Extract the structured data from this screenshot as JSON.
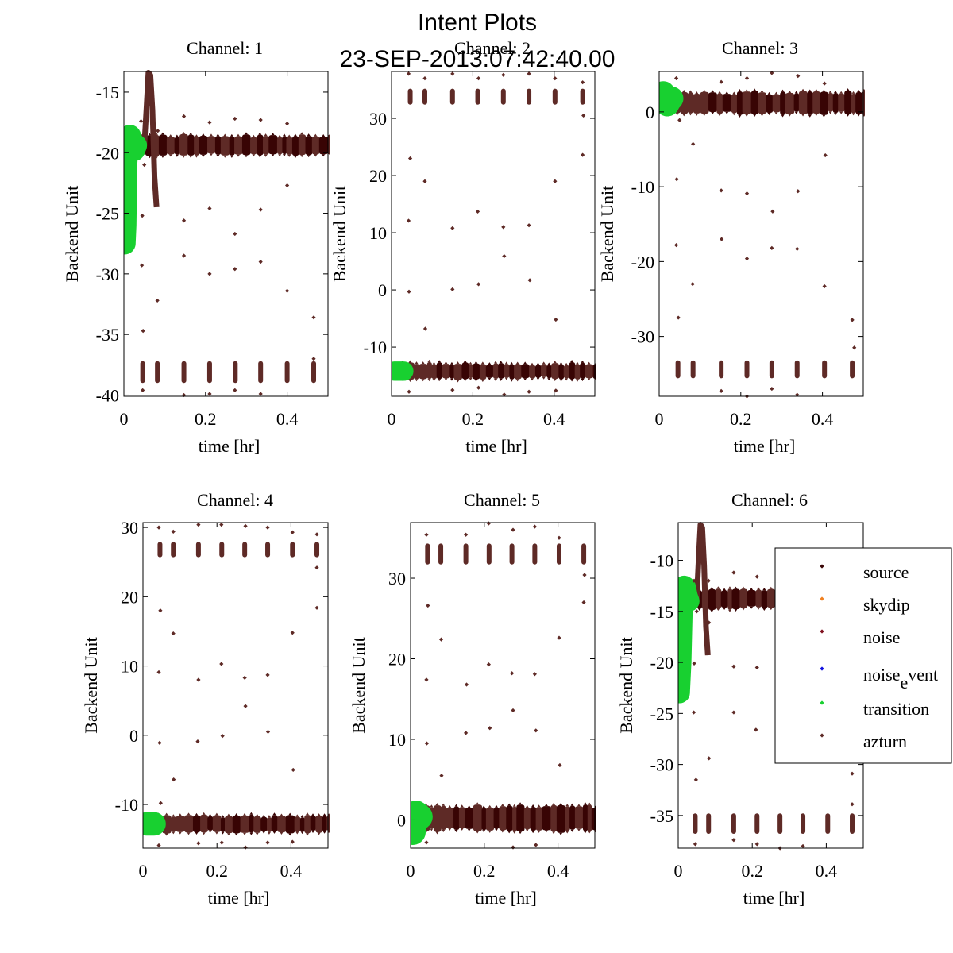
{
  "figure": {
    "title_line1": "Intent Plots",
    "title_line2": "23-SEP-2013:07:42:40.00"
  },
  "colors": {
    "source": "#3a0606",
    "skydip": "#f08020",
    "noise": "#80101e",
    "noise_event": "#1010e0",
    "transition": "#18d030",
    "azturn": "#5e2a26",
    "band_dark": "#380404",
    "band_light": "#5e2a26"
  },
  "legend": {
    "location": "upper-right of Channel 6 panel",
    "entries": [
      {
        "key": "source",
        "label": "source",
        "sub": ""
      },
      {
        "key": "skydip",
        "label": "skydip",
        "sub": ""
      },
      {
        "key": "noise",
        "label": "noise",
        "sub": ""
      },
      {
        "key": "noise_event",
        "label": "noise",
        "sub": "e",
        "tail": "vent"
      },
      {
        "key": "transition",
        "label": "transition",
        "sub": ""
      },
      {
        "key": "azturn",
        "label": "azturn",
        "sub": ""
      }
    ]
  },
  "chart_data": [
    {
      "type": "scatter",
      "title": "Channel: 1",
      "xlabel": "time [hr]",
      "ylabel": "Backend Unit",
      "xlim": [
        0,
        0.5
      ],
      "ylim": [
        -40.1,
        -13.3
      ],
      "xticks": [
        0,
        0.2,
        0.4
      ],
      "xtick_labels": [
        "0",
        "0.2",
        "0.4"
      ],
      "yticks": [
        -40,
        -35,
        -30,
        -25,
        -20,
        -15
      ],
      "ytick_labels": [
        "-40",
        "-35",
        "-30",
        "-25",
        "-20",
        "-15"
      ],
      "main_band": {
        "center": -19.4,
        "half_width": 0.8,
        "x_start": 0.035,
        "x_end": 0.5
      },
      "transition": {
        "x": [
          0.002,
          0.004,
          0.006,
          0.01,
          0.015,
          0.02,
          0.025,
          0.03
        ],
        "y": [
          -27.5,
          -26.0,
          -21.0,
          -19.0,
          -18.6,
          -19.0,
          -19.8,
          -19.4
        ],
        "spread": 0.9
      },
      "initial_spike": {
        "x": [
          0.0,
          0.002,
          0.004
        ],
        "y": [
          -19.0,
          -25.0,
          -27.0
        ]
      },
      "excursion": {
        "x": [
          0.05,
          0.055,
          0.06,
          0.065,
          0.07,
          0.075,
          0.08
        ],
        "y": [
          -19.4,
          -16.5,
          -13.4,
          -13.6,
          -16.5,
          -22.0,
          -24.5
        ],
        "spread": 0.5
      },
      "azturn_clusters": {
        "x": [
          0.046,
          0.082,
          0.147,
          0.21,
          0.273,
          0.335,
          0.4,
          0.465
        ],
        "center": -38.1,
        "half_height": 0.9
      },
      "outliers": [
        [
          0.042,
          -17.4
        ],
        [
          0.045,
          -25.2
        ],
        [
          0.044,
          -29.3
        ],
        [
          0.047,
          -34.7
        ],
        [
          0.05,
          -21.0
        ],
        [
          0.082,
          -32.2
        ],
        [
          0.083,
          -18.2
        ],
        [
          0.147,
          -17.0
        ],
        [
          0.147,
          -25.6
        ],
        [
          0.147,
          -28.5
        ],
        [
          0.21,
          -17.5
        ],
        [
          0.21,
          -24.6
        ],
        [
          0.21,
          -30.0
        ],
        [
          0.272,
          -17.2
        ],
        [
          0.272,
          -26.7
        ],
        [
          0.272,
          -29.6
        ],
        [
          0.335,
          -17.3
        ],
        [
          0.335,
          -24.7
        ],
        [
          0.335,
          -29.0
        ],
        [
          0.4,
          -17.6
        ],
        [
          0.4,
          -22.7
        ],
        [
          0.4,
          -31.4
        ],
        [
          0.465,
          -33.6
        ],
        [
          0.465,
          -37.0
        ],
        [
          0.147,
          -40.0
        ],
        [
          0.21,
          -39.9
        ],
        [
          0.272,
          -39.6
        ],
        [
          0.335,
          -39.9
        ],
        [
          0.046,
          -39.6
        ]
      ]
    },
    {
      "type": "scatter",
      "title": "Channel: 2",
      "xlabel": "time [hr]",
      "ylabel": "Backend Unit",
      "xlim": [
        0,
        0.5
      ],
      "ylim": [
        -18.6,
        38.2
      ],
      "xticks": [
        0,
        0.2,
        0.4
      ],
      "xtick_labels": [
        "0",
        "0.2",
        "0.4"
      ],
      "yticks": [
        -10,
        0,
        10,
        20,
        30
      ],
      "ytick_labels": [
        "-10",
        "0",
        "10",
        "20",
        "30"
      ],
      "main_band": {
        "center": -14.2,
        "half_width": 1.3,
        "x_start": 0.0,
        "x_end": 0.5
      },
      "transition": {
        "x": [
          0.008,
          0.012,
          0.018,
          0.022,
          0.026,
          0.03
        ],
        "y": [
          -14.2,
          -14.2,
          -14.2,
          -14.2,
          -14.2,
          -14.2
        ],
        "spread": 1.7
      },
      "initial_spike": null,
      "excursion": null,
      "azturn_clusters": {
        "x": [
          0.046,
          0.082,
          0.15,
          0.212,
          0.275,
          0.338,
          0.402,
          0.47
        ],
        "center": 33.8,
        "half_height": 1.4
      },
      "outliers": [
        [
          0.042,
          37.8
        ],
        [
          0.046,
          23.0
        ],
        [
          0.042,
          12.1
        ],
        [
          0.043,
          -0.3
        ],
        [
          0.082,
          19.0
        ],
        [
          0.083,
          -6.8
        ],
        [
          0.082,
          37.0
        ],
        [
          0.15,
          10.8
        ],
        [
          0.15,
          0.1
        ],
        [
          0.15,
          37.8
        ],
        [
          0.212,
          13.7
        ],
        [
          0.214,
          1.0
        ],
        [
          0.214,
          37.0
        ],
        [
          0.275,
          11.0
        ],
        [
          0.277,
          5.9
        ],
        [
          0.275,
          37.6
        ],
        [
          0.338,
          11.3
        ],
        [
          0.34,
          1.7
        ],
        [
          0.338,
          37.8
        ],
        [
          0.402,
          19.0
        ],
        [
          0.404,
          -5.2
        ],
        [
          0.402,
          37.0
        ],
        [
          0.47,
          23.6
        ],
        [
          0.472,
          30.5
        ],
        [
          0.47,
          36.3
        ],
        [
          0.043,
          -17.8
        ],
        [
          0.15,
          -17.5
        ],
        [
          0.214,
          -17.1
        ],
        [
          0.277,
          -18.3
        ],
        [
          0.338,
          -17.8
        ],
        [
          0.404,
          -17.6
        ]
      ]
    },
    {
      "type": "scatter",
      "title": "Channel: 3",
      "xlabel": "time [hr]",
      "ylabel": "Backend Unit",
      "xlim": [
        0,
        0.5
      ],
      "ylim": [
        -38.0,
        5.4
      ],
      "xticks": [
        0,
        0.2,
        0.4
      ],
      "xtick_labels": [
        "0",
        "0.2",
        "0.4"
      ],
      "yticks": [
        -30,
        -20,
        -10,
        0
      ],
      "ytick_labels": [
        "-30",
        "-20",
        "-10",
        "0"
      ],
      "main_band": {
        "center": 1.2,
        "half_width": 1.4,
        "x_start": 0.0,
        "x_end": 0.5
      },
      "transition": {
        "x": [
          0.005,
          0.01,
          0.015,
          0.02,
          0.025,
          0.03
        ],
        "y": [
          1.5,
          2.5,
          1.2,
          1.0,
          1.5,
          1.8
        ],
        "spread": 1.6
      },
      "initial_spike": null,
      "excursion": null,
      "azturn_clusters": {
        "x": [
          0.046,
          0.083,
          0.152,
          0.215,
          0.276,
          0.338,
          0.405,
          0.473
        ],
        "center": -34.4,
        "half_height": 1.2
      },
      "outliers": [
        [
          0.043,
          -9.0
        ],
        [
          0.042,
          -17.8
        ],
        [
          0.047,
          -27.5
        ],
        [
          0.05,
          -1.1
        ],
        [
          0.083,
          -4.3
        ],
        [
          0.082,
          -23.0
        ],
        [
          0.152,
          -10.5
        ],
        [
          0.153,
          -17.0
        ],
        [
          0.215,
          -10.9
        ],
        [
          0.215,
          -19.6
        ],
        [
          0.278,
          -13.3
        ],
        [
          0.276,
          -18.2
        ],
        [
          0.34,
          -10.6
        ],
        [
          0.338,
          -18.3
        ],
        [
          0.407,
          -5.8
        ],
        [
          0.405,
          -23.3
        ],
        [
          0.473,
          -27.8
        ],
        [
          0.478,
          -31.5
        ],
        [
          0.042,
          4.5
        ],
        [
          0.152,
          4.0
        ],
        [
          0.215,
          4.5
        ],
        [
          0.276,
          5.2
        ],
        [
          0.34,
          4.8
        ],
        [
          0.405,
          3.8
        ],
        [
          0.215,
          -38.0
        ],
        [
          0.276,
          -37.0
        ],
        [
          0.338,
          -37.8
        ],
        [
          0.152,
          -37.3
        ]
      ]
    },
    {
      "type": "scatter",
      "title": "Channel: 4",
      "xlabel": "time [hr]",
      "ylabel": "Backend Unit",
      "xlim": [
        0,
        0.5
      ],
      "ylim": [
        -16.3,
        30.7
      ],
      "xticks": [
        0,
        0.2,
        0.4
      ],
      "xtick_labels": [
        "0",
        "0.2",
        "0.4"
      ],
      "yticks": [
        -10,
        0,
        10,
        20,
        30
      ],
      "ytick_labels": [
        "-10",
        "0",
        "10",
        "20",
        "30"
      ],
      "main_band": {
        "center": -12.8,
        "half_width": 1.2,
        "x_start": 0.0,
        "x_end": 0.5
      },
      "transition": {
        "x": [
          0.01,
          0.015,
          0.02,
          0.025,
          0.03
        ],
        "y": [
          -12.8,
          -12.8,
          -12.8,
          -12.8,
          -12.8
        ],
        "spread": 1.7
      },
      "initial_spike": null,
      "excursion": null,
      "azturn_clusters": {
        "x": [
          0.046,
          0.082,
          0.15,
          0.213,
          0.275,
          0.337,
          0.404,
          0.47
        ],
        "center": 26.8,
        "half_height": 1.1
      },
      "outliers": [
        [
          0.043,
          30.0
        ],
        [
          0.047,
          18.0
        ],
        [
          0.043,
          9.1
        ],
        [
          0.045,
          -1.1
        ],
        [
          0.048,
          -9.8
        ],
        [
          0.082,
          14.7
        ],
        [
          0.083,
          -6.4
        ],
        [
          0.082,
          29.4
        ],
        [
          0.15,
          8.0
        ],
        [
          0.148,
          -0.9
        ],
        [
          0.15,
          30.4
        ],
        [
          0.212,
          10.3
        ],
        [
          0.215,
          -0.1
        ],
        [
          0.212,
          30.4
        ],
        [
          0.275,
          8.3
        ],
        [
          0.277,
          4.2
        ],
        [
          0.277,
          30.2
        ],
        [
          0.337,
          8.7
        ],
        [
          0.338,
          0.5
        ],
        [
          0.337,
          30.0
        ],
        [
          0.404,
          14.8
        ],
        [
          0.406,
          -5.0
        ],
        [
          0.404,
          29.3
        ],
        [
          0.47,
          18.4
        ],
        [
          0.47,
          24.2
        ],
        [
          0.47,
          29.0
        ],
        [
          0.043,
          -15.9
        ],
        [
          0.15,
          -15.6
        ],
        [
          0.213,
          -15.5
        ],
        [
          0.277,
          -16.2
        ],
        [
          0.337,
          -15.5
        ],
        [
          0.404,
          -15.4
        ]
      ]
    },
    {
      "type": "scatter",
      "title": "Channel: 5",
      "xlabel": "time [hr]",
      "ylabel": "Backend Unit",
      "xlim": [
        0,
        0.5
      ],
      "ylim": [
        -3.5,
        36.9
      ],
      "xticks": [
        0,
        0.2,
        0.4
      ],
      "xtick_labels": [
        "0",
        "0.2",
        "0.4"
      ],
      "yticks": [
        0,
        10,
        20,
        30
      ],
      "ytick_labels": [
        "0",
        "10",
        "20",
        "30"
      ],
      "main_band": {
        "center": 0.2,
        "half_width": 1.5,
        "x_start": 0.0,
        "x_end": 0.5
      },
      "transition": {
        "x": [
          0.006,
          0.01,
          0.015,
          0.02,
          0.025
        ],
        "y": [
          -1.5,
          0.5,
          0.8,
          0.6,
          0.4
        ],
        "spread": 1.6
      },
      "initial_spike": null,
      "excursion": null,
      "azturn_clusters": {
        "x": [
          0.046,
          0.082,
          0.15,
          0.213,
          0.275,
          0.337,
          0.403,
          0.47
        ],
        "center": 33.0,
        "half_height": 1.3
      },
      "outliers": [
        [
          0.043,
          17.4
        ],
        [
          0.044,
          9.5
        ],
        [
          0.047,
          26.6
        ],
        [
          0.083,
          22.4
        ],
        [
          0.084,
          5.5
        ],
        [
          0.15,
          10.8
        ],
        [
          0.152,
          16.8
        ],
        [
          0.212,
          19.3
        ],
        [
          0.215,
          11.4
        ],
        [
          0.275,
          18.2
        ],
        [
          0.278,
          13.6
        ],
        [
          0.337,
          18.1
        ],
        [
          0.34,
          11.1
        ],
        [
          0.403,
          22.6
        ],
        [
          0.405,
          6.8
        ],
        [
          0.47,
          27.0
        ],
        [
          0.472,
          30.4
        ],
        [
          0.212,
          36.8
        ],
        [
          0.278,
          36.0
        ],
        [
          0.337,
          36.4
        ],
        [
          0.043,
          35.4
        ],
        [
          0.15,
          35.4
        ],
        [
          0.403,
          35.0
        ],
        [
          0.278,
          -3.4
        ],
        [
          0.34,
          -3.1
        ],
        [
          0.043,
          -2.8
        ]
      ]
    },
    {
      "type": "scatter",
      "title": "Channel: 6",
      "xlabel": "time [hr]",
      "ylabel": "Backend Unit",
      "xlim": [
        0,
        0.5
      ],
      "ylim": [
        -38.2,
        -6.3
      ],
      "xticks": [
        0,
        0.2,
        0.4
      ],
      "xtick_labels": [
        "0",
        "0.2",
        "0.4"
      ],
      "yticks": [
        -35,
        -30,
        -25,
        -20,
        -15,
        -10
      ],
      "ytick_labels": [
        "-35",
        "-30",
        "-25",
        "-20",
        "-15",
        "-10"
      ],
      "main_band": {
        "center": -13.8,
        "half_width": 0.9,
        "x_start": 0.035,
        "x_end": 0.5
      },
      "transition": {
        "x": [
          0.004,
          0.008,
          0.012,
          0.016,
          0.02,
          0.025,
          0.03
        ],
        "y": [
          -23.0,
          -20.0,
          -14.0,
          -12.5,
          -12.6,
          -13.5,
          -14.0
        ],
        "spread": 1.0
      },
      "initial_spike": {
        "x": [
          0.0,
          0.002,
          0.004
        ],
        "y": [
          -14.0,
          -19.0,
          -22.0
        ]
      },
      "excursion": {
        "x": [
          0.05,
          0.055,
          0.06,
          0.065,
          0.07,
          0.075,
          0.08
        ],
        "y": [
          -13.8,
          -10.0,
          -6.5,
          -6.8,
          -10.5,
          -16.5,
          -19.3
        ],
        "spread": 0.5
      },
      "azturn_clusters": {
        "x": [
          0.046,
          0.082,
          0.15,
          0.213,
          0.275,
          0.337,
          0.404,
          0.47
        ],
        "center": -35.8,
        "half_height": 1.0
      },
      "outliers": [
        [
          0.043,
          -12.0
        ],
        [
          0.043,
          -20.1
        ],
        [
          0.042,
          -24.9
        ],
        [
          0.048,
          -31.5
        ],
        [
          0.05,
          -15.0
        ],
        [
          0.083,
          -16.1
        ],
        [
          0.083,
          -29.4
        ],
        [
          0.082,
          -12.0
        ],
        [
          0.15,
          -20.4
        ],
        [
          0.15,
          -24.9
        ],
        [
          0.15,
          -11.2
        ],
        [
          0.213,
          -20.5
        ],
        [
          0.21,
          -26.6
        ],
        [
          0.213,
          -11.6
        ],
        [
          0.47,
          -30.9
        ],
        [
          0.47,
          -33.9
        ],
        [
          0.046,
          -37.8
        ],
        [
          0.15,
          -37.4
        ],
        [
          0.213,
          -37.8
        ],
        [
          0.275,
          -38.2
        ],
        [
          0.337,
          -38.0
        ]
      ]
    }
  ]
}
